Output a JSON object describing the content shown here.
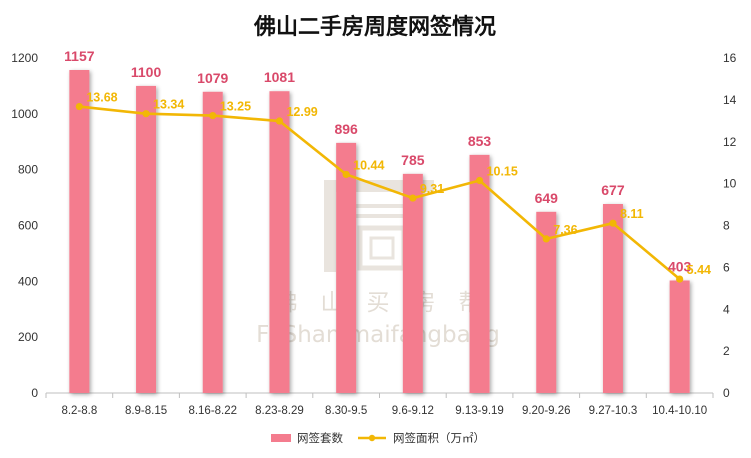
{
  "chart_data": {
    "type": "bar",
    "title": "佛山二手房周度网签情况",
    "categories": [
      "8.2-8.8",
      "8.9-8.15",
      "8.16-8.22",
      "8.23-8.29",
      "8.30-9.5",
      "9.6-9.12",
      "9.13-9.19",
      "9.20-9.26",
      "9.27-10.3",
      "10.4-10.10"
    ],
    "series": [
      {
        "name": "网签套数",
        "type": "bar",
        "axis": "left",
        "color": "#f47c8e",
        "values": [
          1157,
          1100,
          1079,
          1081,
          896,
          785,
          853,
          649,
          677,
          403
        ],
        "labels": [
          "1157",
          "1100",
          "1079",
          "1081",
          "896",
          "785",
          "853",
          "649",
          "677",
          "403"
        ]
      },
      {
        "name": "网签面积（万㎡）",
        "type": "line",
        "axis": "right",
        "color": "#f2b705",
        "values": [
          13.68,
          13.34,
          13.25,
          12.99,
          10.44,
          9.31,
          10.15,
          7.36,
          8.11,
          5.44
        ],
        "labels": [
          "13.68",
          "13.34",
          "13.25",
          "12.99",
          "10.44",
          "9.31",
          "10.15",
          "7.36",
          "8.11",
          "5.44"
        ]
      }
    ],
    "y_left": {
      "lim": [
        0,
        1200
      ],
      "ticks": [
        "0",
        "200",
        "400",
        "600",
        "800",
        "1000",
        "1200"
      ]
    },
    "y_right": {
      "lim": [
        0,
        16
      ],
      "ticks": [
        "0",
        "2",
        "4",
        "6",
        "8",
        "10",
        "12",
        "14",
        "16"
      ]
    },
    "grid": false,
    "legend_position": "bottom-center"
  },
  "watermark": {
    "line1": "佛　山　买　房　帮",
    "line2": "FoShan maifangbang"
  }
}
